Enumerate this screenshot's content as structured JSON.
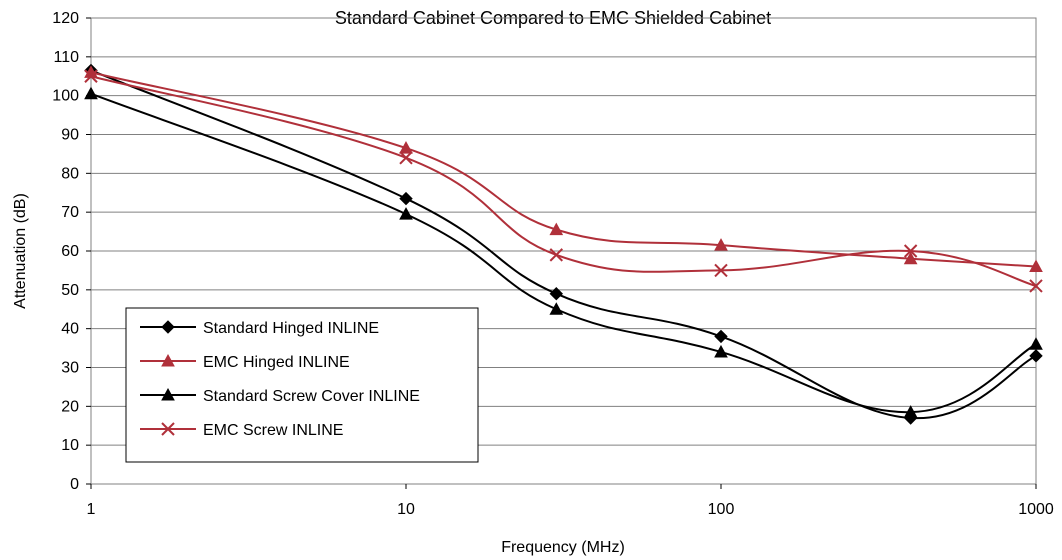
{
  "chart_data": {
    "type": "line",
    "title": "Standard Cabinet Compared to EMC Shielded Cabinet",
    "xlabel": "Frequency (MHz)",
    "ylabel": "Attenuation (dB)",
    "xscale": "log",
    "xlim": [
      1,
      1000
    ],
    "ylim": [
      0,
      120
    ],
    "x_ticks": [
      1,
      10,
      100,
      1000
    ],
    "x_tick_labels": [
      "1",
      "10",
      "100",
      "1000"
    ],
    "y_ticks": [
      0,
      10,
      20,
      30,
      40,
      50,
      60,
      70,
      80,
      90,
      100,
      110,
      120
    ],
    "y_tick_labels": [
      "0",
      "10",
      "20",
      "30",
      "40",
      "50",
      "60",
      "70",
      "80",
      "90",
      "100",
      "110",
      "120"
    ],
    "grid": "horizontal",
    "legend_position": "bottom-left",
    "series": [
      {
        "name": "Standard Hinged INLINE",
        "color": "#000000",
        "marker": "diamond",
        "x": [
          1,
          10,
          30,
          100,
          400,
          1000
        ],
        "y": [
          106.5,
          73.5,
          49,
          38,
          17,
          33
        ]
      },
      {
        "name": "EMC Hinged INLINE",
        "color": "#b0303a",
        "marker": "triangle",
        "x": [
          1,
          10,
          30,
          100,
          400,
          1000
        ],
        "y": [
          106,
          86.5,
          65.5,
          61.5,
          58,
          56
        ]
      },
      {
        "name": "Standard Screw Cover INLINE",
        "color": "#000000",
        "marker": "triangle",
        "x": [
          1,
          10,
          30,
          100,
          400,
          1000
        ],
        "y": [
          100.5,
          69.5,
          45,
          34,
          18.5,
          36
        ]
      },
      {
        "name": "EMC Screw INLINE",
        "color": "#b0303a",
        "marker": "x",
        "x": [
          1,
          10,
          30,
          100,
          400,
          1000
        ],
        "y": [
          105,
          84,
          59,
          55,
          60,
          51
        ]
      }
    ]
  }
}
